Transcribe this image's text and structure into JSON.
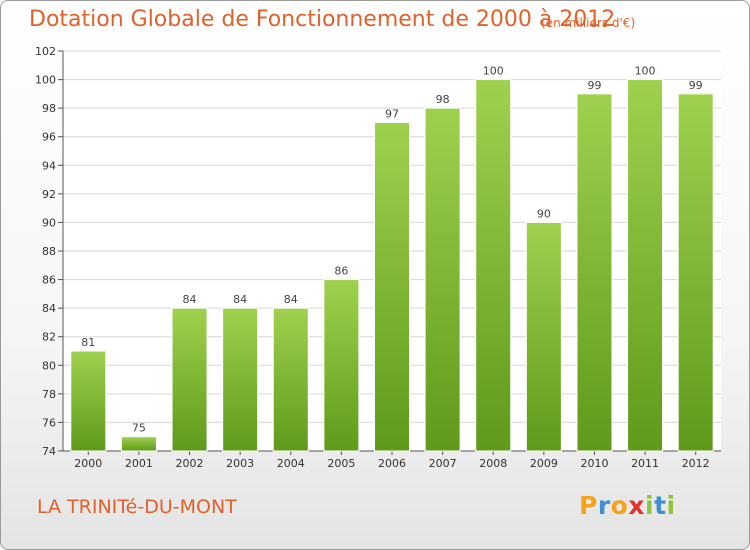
{
  "header": {
    "title": "Dotation Globale de Fonctionnement de 2000 à 2012",
    "subtitle": "(en milliers d'€)"
  },
  "footer": {
    "commune": "LA TRINITé-DU-MONT",
    "logo_letters": [
      "P",
      "r",
      "o",
      "x",
      "i",
      "t",
      "i"
    ],
    "logo_colors": [
      "#f7a21b",
      "#3f8fd2",
      "#f7a21b",
      "#e2342b",
      "#8cc63f",
      "#3f8fd2",
      "#8cc63f"
    ]
  },
  "chart_data": {
    "type": "bar",
    "title": "Dotation Globale de Fonctionnement de 2000 à 2012",
    "subtitle": "(en milliers d'€)",
    "categories": [
      "2000",
      "2001",
      "2002",
      "2003",
      "2004",
      "2005",
      "2006",
      "2007",
      "2008",
      "2009",
      "2010",
      "2011",
      "2012"
    ],
    "values": [
      81,
      75,
      84,
      84,
      84,
      86,
      97,
      98,
      100,
      90,
      99,
      100,
      99
    ],
    "ylim": [
      74,
      102
    ],
    "yticks": [
      74,
      76,
      78,
      80,
      82,
      84,
      86,
      88,
      90,
      92,
      94,
      96,
      98,
      100,
      102
    ],
    "grid": true,
    "bar_color": "#7db534",
    "grid_color": "#d6d6d6"
  }
}
